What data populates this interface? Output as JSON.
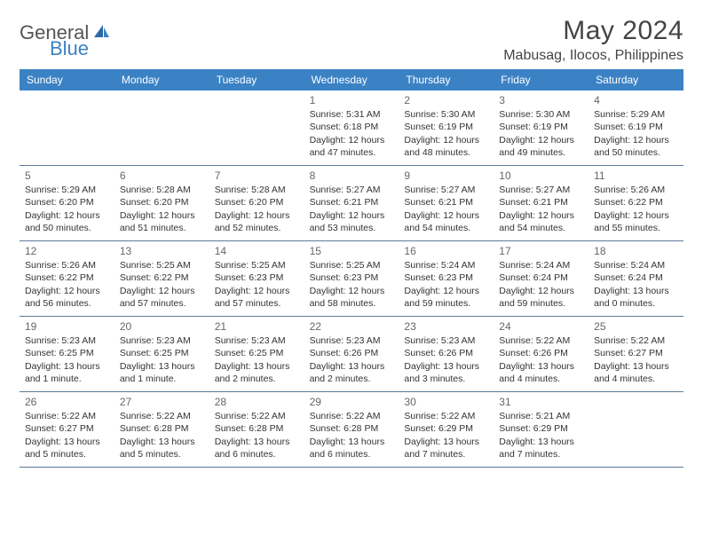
{
  "logo": {
    "text1": "General",
    "text2": "Blue"
  },
  "title": "May 2024",
  "location": "Mabusag, Ilocos, Philippines",
  "header_color": "#3b82c4",
  "day_headers": [
    "Sunday",
    "Monday",
    "Tuesday",
    "Wednesday",
    "Thursday",
    "Friday",
    "Saturday"
  ],
  "weeks": [
    [
      null,
      null,
      null,
      {
        "n": "1",
        "sr": "5:31 AM",
        "ss": "6:18 PM",
        "dl1": "12 hours",
        "dl2": "and 47 minutes."
      },
      {
        "n": "2",
        "sr": "5:30 AM",
        "ss": "6:19 PM",
        "dl1": "12 hours",
        "dl2": "and 48 minutes."
      },
      {
        "n": "3",
        "sr": "5:30 AM",
        "ss": "6:19 PM",
        "dl1": "12 hours",
        "dl2": "and 49 minutes."
      },
      {
        "n": "4",
        "sr": "5:29 AM",
        "ss": "6:19 PM",
        "dl1": "12 hours",
        "dl2": "and 50 minutes."
      }
    ],
    [
      {
        "n": "5",
        "sr": "5:29 AM",
        "ss": "6:20 PM",
        "dl1": "12 hours",
        "dl2": "and 50 minutes."
      },
      {
        "n": "6",
        "sr": "5:28 AM",
        "ss": "6:20 PM",
        "dl1": "12 hours",
        "dl2": "and 51 minutes."
      },
      {
        "n": "7",
        "sr": "5:28 AM",
        "ss": "6:20 PM",
        "dl1": "12 hours",
        "dl2": "and 52 minutes."
      },
      {
        "n": "8",
        "sr": "5:27 AM",
        "ss": "6:21 PM",
        "dl1": "12 hours",
        "dl2": "and 53 minutes."
      },
      {
        "n": "9",
        "sr": "5:27 AM",
        "ss": "6:21 PM",
        "dl1": "12 hours",
        "dl2": "and 54 minutes."
      },
      {
        "n": "10",
        "sr": "5:27 AM",
        "ss": "6:21 PM",
        "dl1": "12 hours",
        "dl2": "and 54 minutes."
      },
      {
        "n": "11",
        "sr": "5:26 AM",
        "ss": "6:22 PM",
        "dl1": "12 hours",
        "dl2": "and 55 minutes."
      }
    ],
    [
      {
        "n": "12",
        "sr": "5:26 AM",
        "ss": "6:22 PM",
        "dl1": "12 hours",
        "dl2": "and 56 minutes."
      },
      {
        "n": "13",
        "sr": "5:25 AM",
        "ss": "6:22 PM",
        "dl1": "12 hours",
        "dl2": "and 57 minutes."
      },
      {
        "n": "14",
        "sr": "5:25 AM",
        "ss": "6:23 PM",
        "dl1": "12 hours",
        "dl2": "and 57 minutes."
      },
      {
        "n": "15",
        "sr": "5:25 AM",
        "ss": "6:23 PM",
        "dl1": "12 hours",
        "dl2": "and 58 minutes."
      },
      {
        "n": "16",
        "sr": "5:24 AM",
        "ss": "6:23 PM",
        "dl1": "12 hours",
        "dl2": "and 59 minutes."
      },
      {
        "n": "17",
        "sr": "5:24 AM",
        "ss": "6:24 PM",
        "dl1": "12 hours",
        "dl2": "and 59 minutes."
      },
      {
        "n": "18",
        "sr": "5:24 AM",
        "ss": "6:24 PM",
        "dl1": "13 hours",
        "dl2": "and 0 minutes."
      }
    ],
    [
      {
        "n": "19",
        "sr": "5:23 AM",
        "ss": "6:25 PM",
        "dl1": "13 hours",
        "dl2": "and 1 minute."
      },
      {
        "n": "20",
        "sr": "5:23 AM",
        "ss": "6:25 PM",
        "dl1": "13 hours",
        "dl2": "and 1 minute."
      },
      {
        "n": "21",
        "sr": "5:23 AM",
        "ss": "6:25 PM",
        "dl1": "13 hours",
        "dl2": "and 2 minutes."
      },
      {
        "n": "22",
        "sr": "5:23 AM",
        "ss": "6:26 PM",
        "dl1": "13 hours",
        "dl2": "and 2 minutes."
      },
      {
        "n": "23",
        "sr": "5:23 AM",
        "ss": "6:26 PM",
        "dl1": "13 hours",
        "dl2": "and 3 minutes."
      },
      {
        "n": "24",
        "sr": "5:22 AM",
        "ss": "6:26 PM",
        "dl1": "13 hours",
        "dl2": "and 4 minutes."
      },
      {
        "n": "25",
        "sr": "5:22 AM",
        "ss": "6:27 PM",
        "dl1": "13 hours",
        "dl2": "and 4 minutes."
      }
    ],
    [
      {
        "n": "26",
        "sr": "5:22 AM",
        "ss": "6:27 PM",
        "dl1": "13 hours",
        "dl2": "and 5 minutes."
      },
      {
        "n": "27",
        "sr": "5:22 AM",
        "ss": "6:28 PM",
        "dl1": "13 hours",
        "dl2": "and 5 minutes."
      },
      {
        "n": "28",
        "sr": "5:22 AM",
        "ss": "6:28 PM",
        "dl1": "13 hours",
        "dl2": "and 6 minutes."
      },
      {
        "n": "29",
        "sr": "5:22 AM",
        "ss": "6:28 PM",
        "dl1": "13 hours",
        "dl2": "and 6 minutes."
      },
      {
        "n": "30",
        "sr": "5:22 AM",
        "ss": "6:29 PM",
        "dl1": "13 hours",
        "dl2": "and 7 minutes."
      },
      {
        "n": "31",
        "sr": "5:21 AM",
        "ss": "6:29 PM",
        "dl1": "13 hours",
        "dl2": "and 7 minutes."
      },
      null
    ]
  ],
  "labels": {
    "sunrise": "Sunrise:",
    "sunset": "Sunset:",
    "daylight": "Daylight:"
  }
}
